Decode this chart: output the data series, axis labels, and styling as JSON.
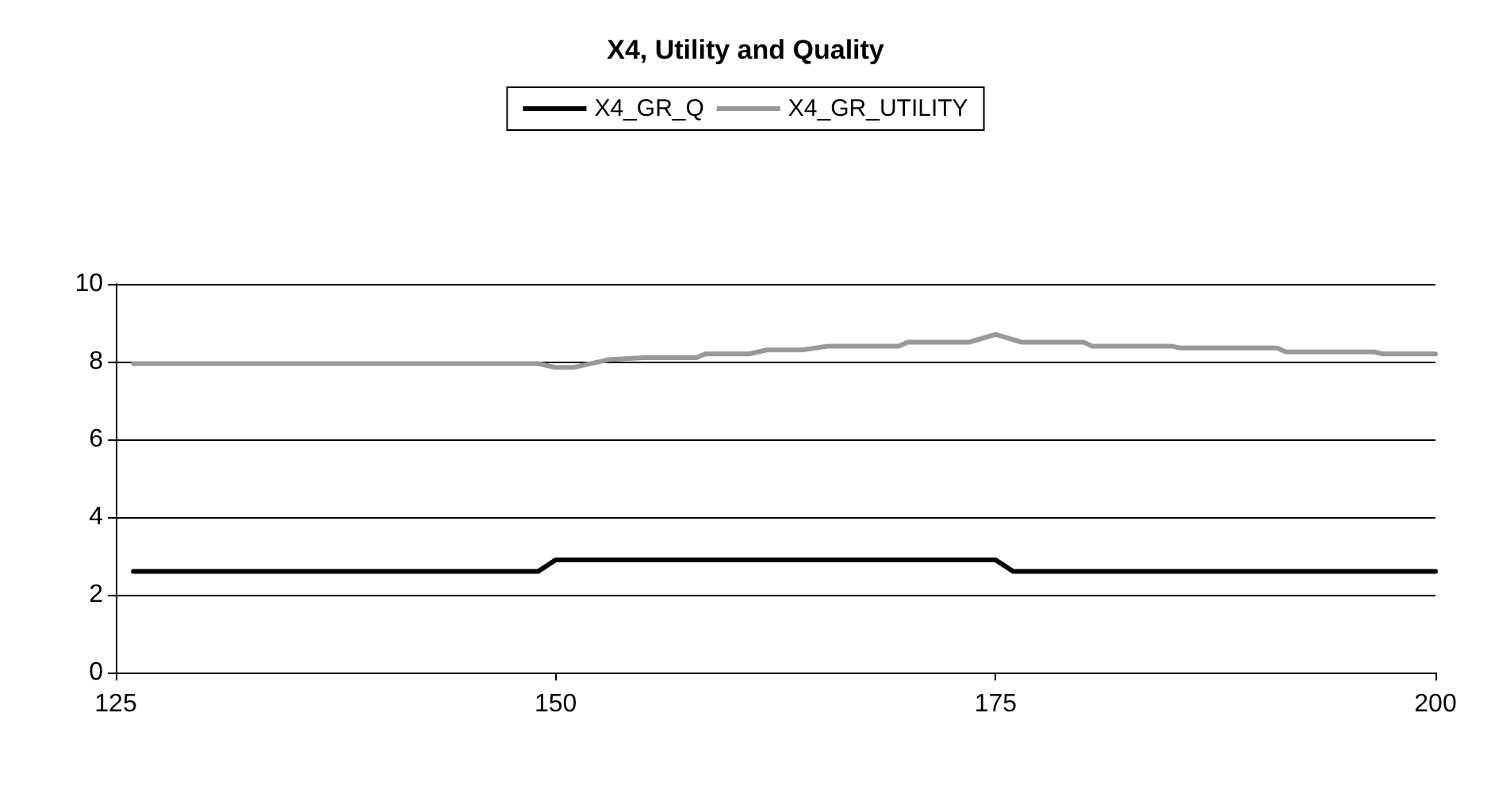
{
  "chart_data": {
    "type": "line",
    "title": "X4, Utility and Quality",
    "xlim": [
      125,
      200
    ],
    "xticks": [
      125,
      150,
      175,
      200
    ],
    "ylim": [
      0,
      10
    ],
    "yticks": [
      0,
      2,
      4,
      6,
      8,
      10
    ],
    "grid": "y",
    "legend": "top",
    "marker": "none",
    "line_style": "solid",
    "series": [
      {
        "name": "X4_GR_Q",
        "color": "#000000",
        "x": [
          126,
          149,
          150,
          175,
          176,
          200
        ],
        "values": [
          2.6,
          2.6,
          2.9,
          2.9,
          2.6,
          2.6
        ]
      },
      {
        "name": "X4_GR_UTILITY",
        "color": "#999999",
        "x": [
          126,
          149,
          150,
          151,
          153,
          155,
          158,
          158.5,
          161,
          162,
          164,
          165.5,
          166,
          169.5,
          170,
          173.5,
          175,
          176.5,
          180,
          180.5,
          185,
          185.5,
          191,
          191.5,
          196.5,
          197,
          200
        ],
        "values": [
          7.95,
          7.95,
          7.85,
          7.85,
          8.05,
          8.1,
          8.1,
          8.2,
          8.2,
          8.3,
          8.3,
          8.4,
          8.4,
          8.4,
          8.5,
          8.5,
          8.7,
          8.5,
          8.5,
          8.4,
          8.4,
          8.35,
          8.35,
          8.25,
          8.25,
          8.2,
          8.2
        ]
      }
    ]
  }
}
